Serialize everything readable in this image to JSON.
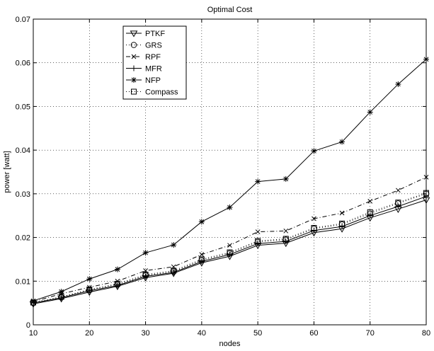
{
  "chart_data": {
    "type": "line",
    "title": "Optimal Cost",
    "xlabel": "nodes",
    "ylabel": "power [watt]",
    "xlim": [
      10,
      80
    ],
    "ylim": [
      0,
      0.07
    ],
    "xticks": [
      "10",
      "20",
      "30",
      "40",
      "50",
      "60",
      "70",
      "80"
    ],
    "yticks": [
      "0",
      "0.01",
      "0.02",
      "0.03",
      "0.04",
      "0.05",
      "0.06",
      "0.07"
    ],
    "grid": true,
    "legend_position": "top-left",
    "x": [
      10,
      15,
      20,
      25,
      30,
      35,
      40,
      45,
      50,
      55,
      60,
      65,
      70,
      75,
      80
    ],
    "series": [
      {
        "name": "PTKF",
        "marker": "triangle-down",
        "linestyle": "solid",
        "values": [
          0.0048,
          0.006,
          0.0075,
          0.0088,
          0.0108,
          0.0118,
          0.0142,
          0.0157,
          0.0182,
          0.0187,
          0.0211,
          0.022,
          0.0245,
          0.0265,
          0.0286
        ]
      },
      {
        "name": "GRS",
        "marker": "circle",
        "linestyle": "dotted",
        "values": [
          0.005,
          0.0063,
          0.008,
          0.0092,
          0.0113,
          0.0122,
          0.0148,
          0.0164,
          0.019,
          0.0195,
          0.022,
          0.023,
          0.0255,
          0.0278,
          0.03
        ]
      },
      {
        "name": "RPF",
        "marker": "x",
        "linestyle": "dashdot",
        "values": [
          0.0053,
          0.0071,
          0.0086,
          0.01,
          0.0124,
          0.0133,
          0.0161,
          0.0182,
          0.0213,
          0.0215,
          0.0243,
          0.0256,
          0.0283,
          0.0308,
          0.0338
        ]
      },
      {
        "name": "MFR",
        "marker": "plus",
        "linestyle": "solid",
        "values": [
          0.005,
          0.0062,
          0.0078,
          0.009,
          0.0111,
          0.012,
          0.0145,
          0.0161,
          0.0186,
          0.0191,
          0.0216,
          0.0225,
          0.025,
          0.0271,
          0.0294
        ]
      },
      {
        "name": "NFP",
        "marker": "star",
        "linestyle": "solid",
        "values": [
          0.0055,
          0.0076,
          0.0105,
          0.0127,
          0.0165,
          0.0183,
          0.0236,
          0.0269,
          0.0328,
          0.0334,
          0.0398,
          0.0419,
          0.0487,
          0.0551,
          0.0608
        ]
      },
      {
        "name": "Compass",
        "marker": "square",
        "linestyle": "dotted",
        "values": [
          0.0051,
          0.0064,
          0.0081,
          0.0094,
          0.0115,
          0.0124,
          0.015,
          0.0166,
          0.0192,
          0.0197,
          0.0222,
          0.0232,
          0.0258,
          0.028,
          0.0302
        ]
      }
    ]
  }
}
